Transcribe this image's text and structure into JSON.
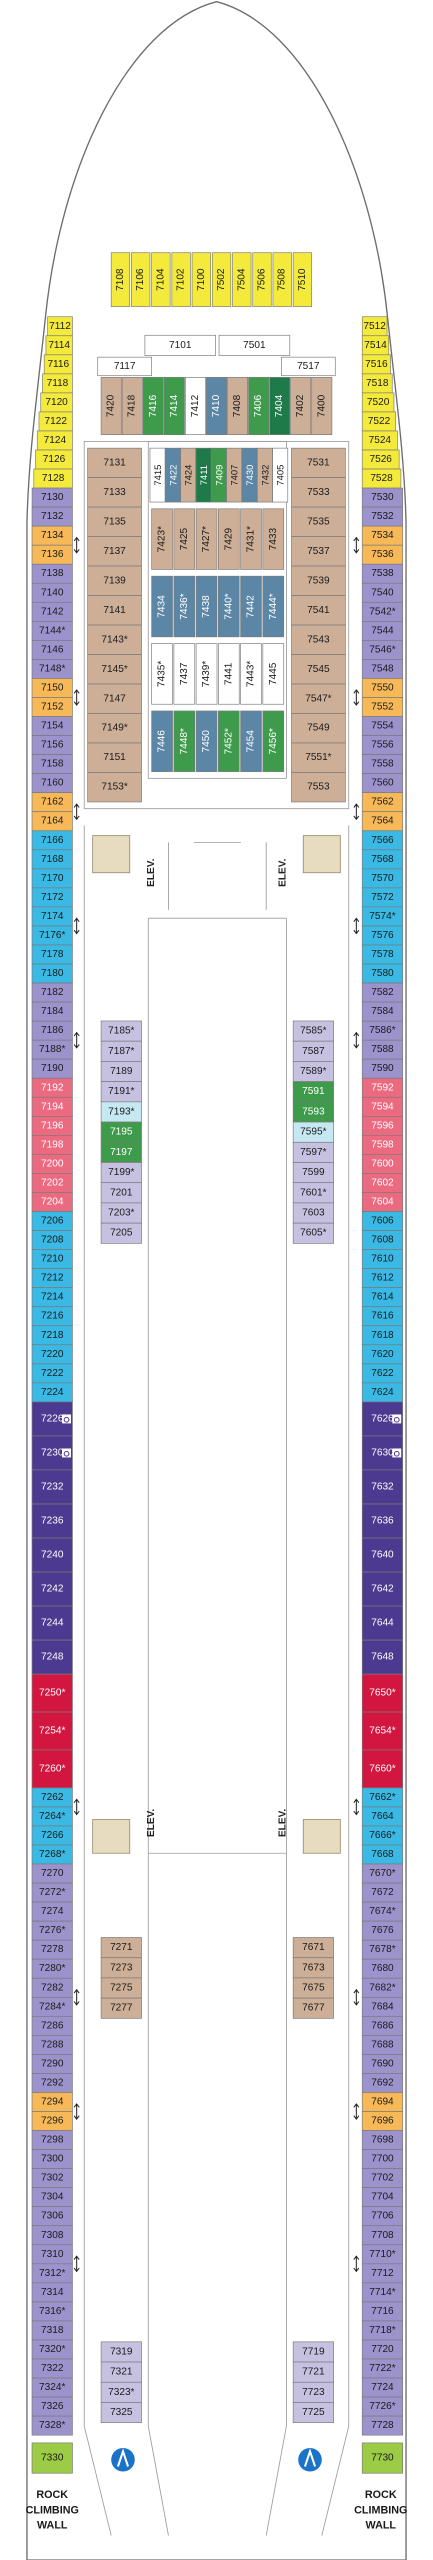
{
  "forward_cabins": {
    "color": "#f4ea3c",
    "cabins": [
      "7108",
      "7106",
      "7104",
      "7102",
      "7100",
      "7502",
      "7504",
      "7506",
      "7508",
      "7510"
    ]
  },
  "forward_suites": {
    "color": "#ffffff",
    "cabins": [
      "7101",
      "7501",
      "7117",
      "7517"
    ]
  },
  "forward_row": {
    "cabins": [
      {
        "label": "7420",
        "color": "#cdae97"
      },
      {
        "label": "7418",
        "color": "#cdae97"
      },
      {
        "label": "7416",
        "color": "#3f9b4c"
      },
      {
        "label": "7414",
        "color": "#3f9b4c"
      },
      {
        "label": "7412",
        "color": "#ffffff"
      },
      {
        "label": "7410",
        "color": "#5b86a6"
      },
      {
        "label": "7408",
        "color": "#cdae97"
      },
      {
        "label": "7406",
        "color": "#3f9b4c"
      },
      {
        "label": "7404",
        "color": "#1f7a4a"
      },
      {
        "label": "7402",
        "color": "#cdae97"
      },
      {
        "label": "7400",
        "color": "#cdae97"
      }
    ]
  },
  "center_top": {
    "cabins": [
      {
        "label": "7415",
        "color": "#ffffff"
      },
      {
        "label": "7422",
        "color": "#5b86a6"
      },
      {
        "label": "7424",
        "color": "#cdae97"
      },
      {
        "label": "7411",
        "color": "#1f7a4a"
      },
      {
        "label": "7409",
        "color": "#3f9b4c"
      },
      {
        "label": "7407",
        "color": "#cdae97"
      },
      {
        "label": "7430",
        "color": "#5b86a6"
      },
      {
        "label": "7432",
        "color": "#cdae97"
      },
      {
        "label": "7405",
        "color": "#ffffff"
      }
    ]
  },
  "center_rows": [
    {
      "color": "#cdae97",
      "cabins": [
        "7423*",
        "7425",
        "7427*",
        "7429",
        "7431*",
        "7433"
      ]
    },
    {
      "color": "#5b86a6",
      "cabins": [
        "7434",
        "7436*",
        "7438",
        "7440*",
        "7442",
        "7444*"
      ]
    },
    {
      "color": "#ffffff",
      "cabins": [
        "7435*",
        "7437",
        "7439*",
        "7441",
        "7443*",
        "7445"
      ]
    },
    {
      "cabins": [
        {
          "label": "7446",
          "color": "#5b86a6"
        },
        {
          "label": "7448*",
          "color": "#3f9b4c"
        },
        {
          "label": "7450",
          "color": "#5b86a6"
        },
        {
          "label": "7452*",
          "color": "#3f9b4c"
        },
        {
          "label": "7454",
          "color": "#5b86a6"
        },
        {
          "label": "7456*",
          "color": "#3f9b4c"
        }
      ]
    }
  ],
  "port_inner_forward": {
    "color": "#cdae97",
    "cabins": [
      "7131",
      "7133",
      "7135",
      "7137",
      "7139",
      "7141",
      "7143*",
      "7145*",
      "7147",
      "7149*",
      "7151",
      "7153*"
    ]
  },
  "starboard_inner_forward": {
    "color": "#cdae97",
    "cabins": [
      "7531",
      "7533",
      "7535",
      "7537",
      "7539",
      "7541",
      "7543",
      "7545",
      "7547*",
      "7549",
      "7551*",
      "7553"
    ]
  },
  "port_outer": [
    {
      "color": "#f4ea3c",
      "cabins": [
        "7112",
        "7114",
        "7116",
        "7118",
        "7120",
        "7122",
        "7124",
        "7126",
        "7128"
      ]
    },
    {
      "color": "#9d93cc",
      "cabins": [
        "7130",
        "7132"
      ]
    },
    {
      "color": "#f7b957",
      "cabins": [
        "7134",
        "7136"
      ]
    },
    {
      "color": "#9d93cc",
      "cabins": [
        "7138",
        "7140",
        "7142",
        "7144*",
        "7146",
        "7148*"
      ]
    },
    {
      "color": "#f7b957",
      "cabins": [
        "7150",
        "7152"
      ]
    },
    {
      "color": "#9d93cc",
      "cabins": [
        "7154",
        "7156",
        "7158",
        "7160"
      ]
    },
    {
      "color": "#f7b957",
      "cabins": [
        "7162",
        "7164"
      ]
    },
    {
      "color": "#39b9e3",
      "cabins": [
        "7166",
        "7168",
        "7170",
        "7172",
        "7174",
        "7176*",
        "7178",
        "7180"
      ]
    },
    {
      "color": "#9d93cc",
      "cabins": [
        "7182",
        "7184",
        "7186",
        "7188*",
        "7190"
      ]
    },
    {
      "color": "#ec6a80",
      "cabins": [
        "7192",
        "7194",
        "7196",
        "7198",
        "7200",
        "7202",
        "7204"
      ]
    },
    {
      "color": "#39b9e3",
      "cabins": [
        "7206",
        "7208",
        "7210",
        "7212",
        "7214",
        "7216",
        "7218",
        "7220",
        "7222",
        "7224"
      ]
    },
    {
      "color": "#4b3a8f",
      "cabins": [
        {
          "label": "7226",
          "accessible": true
        },
        {
          "label": "7230",
          "accessible": true
        },
        {
          "label": "7232"
        },
        {
          "label": "7236"
        },
        {
          "label": "7240"
        },
        {
          "label": "7242"
        },
        {
          "label": "7244"
        },
        {
          "label": "7248"
        }
      ]
    },
    {
      "color": "#d2163f",
      "cabins": [
        "7250*",
        "7254*",
        "7260*"
      ]
    },
    {
      "color": "#39b9e3",
      "cabins": [
        "7262",
        "7264*",
        "7266",
        "7268*"
      ]
    },
    {
      "color": "#9d93cc",
      "cabins": [
        "7270",
        "7272*",
        "7274",
        "7276*",
        "7278",
        "7280*",
        "7282",
        "7284*",
        "7286",
        "7288",
        "7290",
        "7292"
      ]
    },
    {
      "color": "#f7b957",
      "cabins": [
        "7294",
        "7296"
      ]
    },
    {
      "color": "#9d93cc",
      "cabins": [
        "7298",
        "7300",
        "7302",
        "7304",
        "7306",
        "7308",
        "7310",
        "7312*",
        "7314",
        "7316*",
        "7318",
        "7320*",
        "7322",
        "7324*",
        "7326",
        "7328*"
      ]
    }
  ],
  "starboard_outer": [
    {
      "color": "#f4ea3c",
      "cabins": [
        "7512",
        "7514",
        "7516",
        "7518",
        "7520",
        "7522",
        "7524",
        "7526",
        "7528"
      ]
    },
    {
      "color": "#9d93cc",
      "cabins": [
        "7530",
        "7532"
      ]
    },
    {
      "color": "#f7b957",
      "cabins": [
        "7534",
        "7536"
      ]
    },
    {
      "color": "#9d93cc",
      "cabins": [
        "7538",
        "7540",
        "7542*",
        "7544",
        "7546*",
        "7548"
      ]
    },
    {
      "color": "#f7b957",
      "cabins": [
        "7550",
        "7552"
      ]
    },
    {
      "color": "#9d93cc",
      "cabins": [
        "7554",
        "7556",
        "7558",
        "7560"
      ]
    },
    {
      "color": "#f7b957",
      "cabins": [
        "7562",
        "7564"
      ]
    },
    {
      "color": "#39b9e3",
      "cabins": [
        "7566",
        "7568",
        "7570",
        "7572",
        "7574*",
        "7576",
        "7578",
        "7580"
      ]
    },
    {
      "color": "#9d93cc",
      "cabins": [
        "7582",
        "7584",
        "7586*",
        "7588",
        "7590"
      ]
    },
    {
      "color": "#ec6a80",
      "cabins": [
        "7592",
        "7594",
        "7596",
        "7598",
        "7600",
        "7602",
        "7604"
      ]
    },
    {
      "color": "#39b9e3",
      "cabins": [
        "7606",
        "7608",
        "7610",
        "7612",
        "7614",
        "7616",
        "7618",
        "7620",
        "7622",
        "7624"
      ]
    },
    {
      "color": "#4b3a8f",
      "cabins": [
        {
          "label": "7626",
          "accessible": true
        },
        {
          "label": "7630",
          "accessible": true
        },
        {
          "label": "7632"
        },
        {
          "label": "7636"
        },
        {
          "label": "7640"
        },
        {
          "label": "7642"
        },
        {
          "label": "7644"
        },
        {
          "label": "7648"
        }
      ]
    },
    {
      "color": "#d2163f",
      "cabins": [
        "7650*",
        "7654*",
        "7660*"
      ]
    },
    {
      "color": "#39b9e3",
      "cabins": [
        "7662*",
        "7664",
        "7666*",
        "7668"
      ]
    },
    {
      "color": "#9d93cc",
      "cabins": [
        "7670*",
        "7672",
        "7674*",
        "7676",
        "7678*",
        "7680",
        "7682*",
        "7684",
        "7686",
        "7688",
        "7690",
        "7692"
      ]
    },
    {
      "color": "#f7b957",
      "cabins": [
        "7694",
        "7696"
      ]
    },
    {
      "color": "#9d93cc",
      "cabins": [
        "7698",
        "7700",
        "7702",
        "7704",
        "7706",
        "7708",
        "7710*",
        "7712",
        "7714*",
        "7716",
        "7718*",
        "7720",
        "7722*",
        "7724",
        "7726*",
        "7728"
      ]
    }
  ],
  "port_inner_mid": {
    "cabins": [
      {
        "label": "7185*",
        "color": "#c7c1e1"
      },
      {
        "label": "7187*",
        "color": "#c7c1e1"
      },
      {
        "label": "7189",
        "color": "#c7c1e1"
      },
      {
        "label": "7191*",
        "color": "#c7c1e1"
      },
      {
        "label": "7193*",
        "color": "#c6e8f2"
      },
      {
        "label": "7195",
        "color": "#3f9b4c"
      },
      {
        "label": "7197",
        "color": "#3f9b4c"
      },
      {
        "label": "7199*",
        "color": "#c7c1e1"
      },
      {
        "label": "7201",
        "color": "#c7c1e1"
      },
      {
        "label": "7203*",
        "color": "#c7c1e1"
      },
      {
        "label": "7205",
        "color": "#c7c1e1"
      }
    ]
  },
  "starboard_inner_mid": {
    "cabins": [
      {
        "label": "7585*",
        "color": "#c7c1e1"
      },
      {
        "label": "7587",
        "color": "#c7c1e1"
      },
      {
        "label": "7589*",
        "color": "#c7c1e1"
      },
      {
        "label": "7591",
        "color": "#3f9b4c"
      },
      {
        "label": "7593",
        "color": "#3f9b4c"
      },
      {
        "label": "7595*",
        "color": "#c6e8f2"
      },
      {
        "label": "7597*",
        "color": "#c7c1e1"
      },
      {
        "label": "7599",
        "color": "#c7c1e1"
      },
      {
        "label": "7601*",
        "color": "#c7c1e1"
      },
      {
        "label": "7603",
        "color": "#c7c1e1"
      },
      {
        "label": "7605*",
        "color": "#c7c1e1"
      }
    ]
  },
  "port_inner_aft": {
    "color": "#cdae97",
    "cabins": [
      "7271",
      "7273",
      "7275",
      "7277"
    ]
  },
  "starboard_inner_aft": {
    "color": "#cdae97",
    "cabins": [
      "7671",
      "7673",
      "7675",
      "7677"
    ]
  },
  "port_inner_stern": {
    "color": "#c7c1e1",
    "cabins": [
      "7319",
      "7321",
      "7323*",
      "7325"
    ]
  },
  "starboard_inner_stern": {
    "color": "#c7c1e1",
    "cabins": [
      "7719",
      "7721",
      "7723",
      "7725"
    ]
  },
  "stern_cabins": {
    "color": "#9ccb45",
    "cabins": [
      "7330",
      "7730"
    ]
  },
  "elevators": [
    "ELEV.",
    "ELEV.",
    "ELEV.",
    "ELEV."
  ],
  "rock_climbing": {
    "port": [
      "ROCK",
      "CLIMBING",
      "WALL"
    ],
    "starboard": [
      "ROCK",
      "CLIMBING",
      "WALL"
    ]
  }
}
